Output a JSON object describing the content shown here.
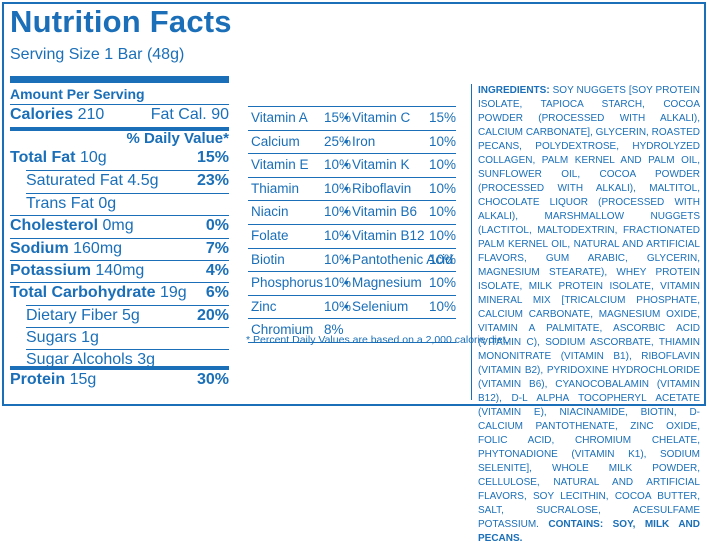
{
  "title": "Nutrition Facts",
  "serving": "Serving Size 1 Bar (48g)",
  "amount_per_serving": "Amount Per Serving",
  "calories": {
    "label": "Calories",
    "value": "210",
    "fat_cal": "Fat Cal. 90"
  },
  "daily_value_header": "% Daily Value*",
  "nutrients": [
    {
      "label": "Total Fat",
      "amount": "10g",
      "pct": "15%",
      "bold": true
    },
    {
      "label": "Saturated Fat",
      "amount": "4.5g",
      "pct": "23%",
      "bold": false
    },
    {
      "label": "Trans Fat",
      "amount": "0g",
      "pct": "",
      "bold": false
    },
    {
      "label": "Cholesterol",
      "amount": "0mg",
      "pct": "0%",
      "bold": true
    },
    {
      "label": "Sodium",
      "amount": "160mg",
      "pct": "7%",
      "bold": true
    },
    {
      "label": "Potassium",
      "amount": "140mg",
      "pct": "4%",
      "bold": true
    },
    {
      "label": "Total Carbohydrate",
      "amount": "19g",
      "pct": "6%",
      "bold": true
    },
    {
      "label": "Dietary Fiber",
      "amount": "5g",
      "pct": "20%",
      "bold": false
    },
    {
      "label": "Sugars",
      "amount": "1g",
      "pct": "",
      "bold": false
    },
    {
      "label": "Sugar Alcohols",
      "amount": "3g",
      "pct": "",
      "bold": false
    },
    {
      "label": "Protein",
      "amount": "15g",
      "pct": "30%",
      "bold": true
    }
  ],
  "vitamins": [
    {
      "a": "Vitamin A",
      "ap": "15%",
      "b": "Vitamin C",
      "bp": "15%"
    },
    {
      "a": "Calcium",
      "ap": "25%",
      "b": "Iron",
      "bp": "10%"
    },
    {
      "a": "Vitamin E",
      "ap": "10%",
      "b": "Vitamin K",
      "bp": "10%"
    },
    {
      "a": "Thiamin",
      "ap": "10%",
      "b": "Riboflavin",
      "bp": "10%"
    },
    {
      "a": "Niacin",
      "ap": "10%",
      "b": "Vitamin B6",
      "bp": "10%"
    },
    {
      "a": "Folate",
      "ap": "10%",
      "b": "Vitamin B12",
      "bp": "10%"
    },
    {
      "a": "Biotin",
      "ap": "10%",
      "b": "Pantothenic Acid",
      "bp": "10%"
    },
    {
      "a": "Phosphorus",
      "ap": "10%",
      "b": "Magnesium",
      "bp": "10%"
    },
    {
      "a": "Zinc",
      "ap": "10%",
      "b": "Selenium",
      "bp": "10%"
    },
    {
      "a": "Chromium",
      "ap": "8%",
      "b": "",
      "bp": ""
    }
  ],
  "vitamin_bullet": "•",
  "footnote": "* Percent Daily Values are based on a 2,000 calorie diet.",
  "ingredients_label": "INGREDIENTS:",
  "ingredients_text": "Soy nuggets [soy protein isolate, tapioca starch, cocoa powder (processed with alkali), calcium carbonate], glycerin, roasted pecans, polydextrose, hydrolyzed collagen, palm kernel and palm oil, sunflower oil, cocoa powder (processed with alkali), maltitol, chocolate liquor (processed with alkali), marshmallow nuggets (lactitol, maltodextrin, fractionated palm kernel oil, natural and artificial flavors, gum arabic, glycerin, magnesium stearate), whey protein isolate, milk protein isolate, vitamin mineral mix [tricalcium phosphate, calcium carbonate, magnesium oxide, vitamin A palmitate, ascorbic acid (vitamin C), sodium ascorbate, thiamin mononitrate (vitamin B1), riboflavin (vitamin B2), pyridoxine hydrochloride (vitamin B6), cyanocobalamin (vitamin B12), d-l alpha tocopheryl acetate (vitamin E), niacinamide, biotin, d-calcium pantothenate, zinc oxide, folic acid, chromium chelate, phytonadione (vitamin K1), sodium selenite], whole milk powder, cellulose, natural and artificial flavors, soy lecithin, cocoa butter, salt, sucralose, acesulfame potassium.",
  "contains": "CONTAINS: SOY, MILK AND PECANS.",
  "colors": {
    "ink": "#1a6fb8"
  }
}
